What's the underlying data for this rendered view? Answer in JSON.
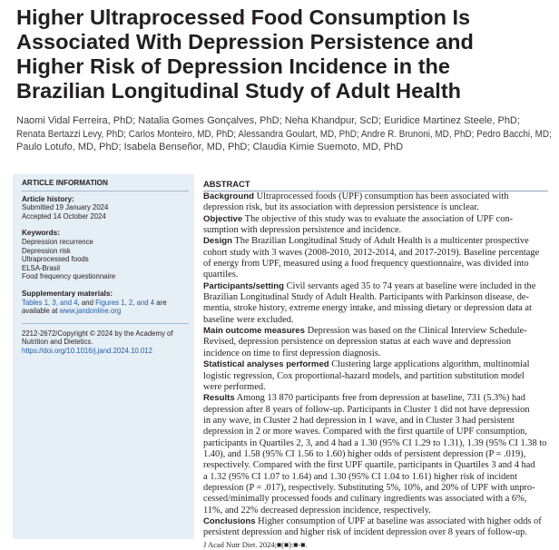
{
  "title_lines": [
    "Higher Ultraprocessed Food Consumption Is",
    "Associated With Depression Persistence and",
    "Higher Risk of Depression Incidence in the",
    "Brazilian Longitudinal Study of Adult Health"
  ],
  "author_lines": [
    "Naomi Vidal Ferreira, PhD; Natalia Gomes Gonçalves, PhD; Neha Khandpur, ScD; Euridice Martinez Steele, PhD;",
    "Renata Bertazzi Levy, PhD; Carlos Monteiro, MD, PhD; Alessandra Goulart, MD, PhD; Andre R. Brunoni, MD, PhD; Pedro Bacchi, MD;",
    "Paulo Lotufo, MD, PhD; Isabela Benseñor, MD, PhD; Claudia Kimie Suemoto, MD, PhD"
  ],
  "sidebar": {
    "article_info": "ARTICLE INFORMATION",
    "history_head": "Article history:",
    "submitted": "Submitted 19 January 2024",
    "accepted": "Accepted 14 October 2024",
    "keywords_head": "Keywords:",
    "keywords": [
      "Depression recurrence",
      "Depression risk",
      "Ultraprocessed foods",
      "ELSA-Brasil",
      "Food frequency questionnaire"
    ],
    "supp_head": "Supplementary materials:",
    "supp_line1_a": "Tables 1, 3, and 4",
    "supp_line1_b": ", and ",
    "supp_line1_c": "Figures 1, 2, and 4",
    "supp_line1_d": " are",
    "supp_line2_a": "available at ",
    "supp_line2_b": "www.jandonline.org",
    "copyright_lines": [
      "2212-2672/Copyright © 2024 by the Academy of",
      "Nutrition and Dietetics."
    ],
    "doi": "https://doi.org/10.1016/j.jand.2024.10.012"
  },
  "abstract": {
    "heading": "ABSTRACT",
    "sections": [
      {
        "label": "Background",
        "lines": [
          " Ultraprocessed foods (UPF) consumption has been associated with",
          "depression risk, but its association with depression persistence is unclear."
        ]
      },
      {
        "label": "Objective",
        "lines": [
          " The objective of this study was to evaluate the association of UPF con-",
          "sumption with depression persistence and incidence."
        ]
      },
      {
        "label": "Design",
        "lines": [
          " The Brazilian Longitudinal Study of Adult Health is a multicenter prospective",
          "cohort study with 3 waves (2008-2010, 2012-2014, and 2017-2019). Baseline percentage",
          "of energy from UPF, measured using a food frequency questionnaire, was divided into",
          "quartiles."
        ]
      },
      {
        "label": "Participants/setting",
        "lines": [
          " Civil servants aged 35 to 74 years at baseline were included in the",
          "Brazilian Longitudinal Study of Adult Health. Participants with Parkinson disease, de-",
          "mentia, stroke history, extreme energy intake, and missing dietary or depression data at",
          "baseline were excluded."
        ]
      },
      {
        "label": "Main outcome measures",
        "lines": [
          " Depression was based on the Clinical Interview Schedule-",
          "Revised, depression persistence on depression status at each wave and depression",
          "incidence on time to first depression diagnosis."
        ]
      },
      {
        "label": "Statistical analyses performed",
        "lines": [
          " Clustering large applications algorithm, multinomial",
          "logistic regression, Cox proportional-hazard models, and partition substitution model",
          "were performed."
        ]
      },
      {
        "label": "Results",
        "lines": [
          " Among 13 870 participants free from depression at baseline, 731 (5.3%) had",
          "depression after 8 years of follow-up. Participants in Cluster 1 did not have depression",
          "in any wave, in Cluster 2 had depression in 1 wave, and in Cluster 3 had persistent",
          "depression in 2 or more waves. Compared with the first quartile of UPF consumption,",
          "participants in Quartiles 2, 3, and 4 had a 1.30 (95% CI 1.29 to 1.31), 1.39 (95% CI 1.38 to",
          "1.40), and 1.58 (95% CI 1.56 to 1.60) higher odds of persistent depression (P = .019),",
          "respectively. Compared with the first UPF quartile, participants in Quartiles 3 and 4 had",
          "a 1.32 (95% CI 1.07 to 1.64) and 1.30 (95% CI 1.04 to 1.61) higher risk of incident",
          "depression (P = .017), respectively. Substituting 5%, 10%, and 20% of UPF with unpro-",
          "cessed/minimally processed foods and culinary ingredients was associated with a 6%,",
          "11%, and 22% decreased depression incidence, respectively."
        ]
      },
      {
        "label": "Conclusions",
        "lines": [
          " Higher consumption of UPF at baseline was associated with higher odds of",
          "persistent depression and higher risk of incident depression over 8 years of follow-up."
        ]
      }
    ],
    "journal_ref": "J Acad Nutr Diet. 2024;■(■):■-■."
  }
}
